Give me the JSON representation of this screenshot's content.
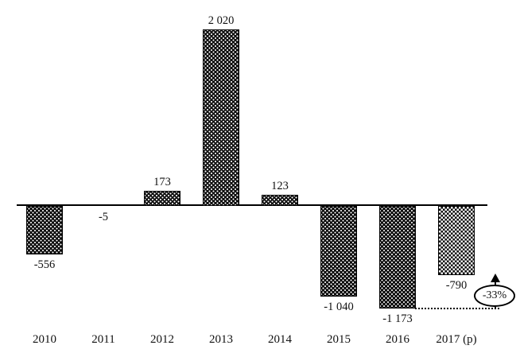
{
  "figure": {
    "background": "#ffffff",
    "bar_fill_color": "#000000",
    "text_color": "#111111"
  },
  "chart_data": {
    "type": "bar",
    "title": "",
    "xlabel": "",
    "ylabel": "",
    "categories": [
      "2010",
      "2011",
      "2012",
      "2013",
      "2014",
      "2015",
      "2016",
      "2017 (p)"
    ],
    "values": [
      -556,
      -5,
      173,
      2020,
      123,
      -1040,
      -1173,
      -790
    ],
    "value_labels": [
      "-556",
      "-5",
      "173",
      "2 020",
      "123",
      "-1 040",
      "-1 173",
      "-790"
    ],
    "bar_patterns": [
      "dots",
      "dots",
      "dots",
      "dots",
      "dots",
      "dots",
      "dots",
      "checker"
    ],
    "ylim": [
      -1300,
      2100
    ],
    "grid": false,
    "legend": false,
    "baseline": 0,
    "annotation": {
      "text": "-33%",
      "shape": "ellipse",
      "icon": "arrow-up",
      "reference_category": "2016",
      "target_category": "2017 (p)"
    }
  }
}
